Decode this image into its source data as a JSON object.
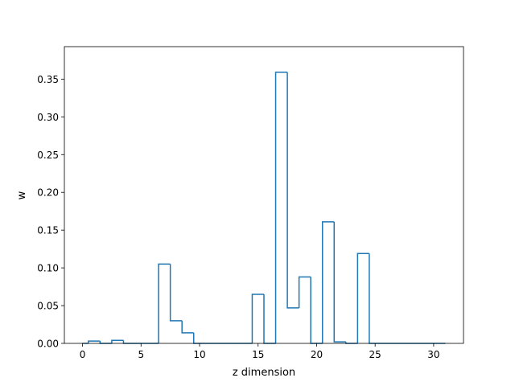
{
  "chart_data": {
    "type": "step",
    "title": "",
    "xlabel": "z dimension",
    "ylabel": "w",
    "xlim": [
      -1.55,
      32.55
    ],
    "ylim": [
      0,
      0.393
    ],
    "x_ticks": [
      0,
      5,
      10,
      15,
      20,
      25,
      30
    ],
    "y_ticks": [
      0.0,
      0.05,
      0.1,
      0.15,
      0.2,
      0.25,
      0.3,
      0.35
    ],
    "y_tick_labels": [
      "0.00",
      "0.05",
      "0.10",
      "0.15",
      "0.20",
      "0.25",
      "0.30",
      "0.35"
    ],
    "x_tick_labels": [
      "0",
      "5",
      "10",
      "15",
      "20",
      "25",
      "30"
    ],
    "grid": false,
    "line_color": "#1f77b4",
    "x": [
      0,
      1,
      2,
      3,
      4,
      5,
      6,
      7,
      8,
      9,
      10,
      11,
      12,
      13,
      14,
      15,
      16,
      17,
      18,
      19,
      20,
      21,
      22,
      23,
      24,
      25,
      26,
      27,
      28,
      29,
      30,
      31
    ],
    "values": [
      0.0,
      0.003,
      0.0,
      0.004,
      0.0,
      0.0,
      0.0,
      0.105,
      0.03,
      0.014,
      0.0,
      0.0,
      0.0,
      0.0,
      0.0,
      0.065,
      0.0,
      0.359,
      0.047,
      0.088,
      0.0,
      0.161,
      0.002,
      0.0,
      0.119,
      0.0,
      0.0,
      0.0,
      0.0,
      0.0,
      0.0,
      0.0
    ]
  }
}
